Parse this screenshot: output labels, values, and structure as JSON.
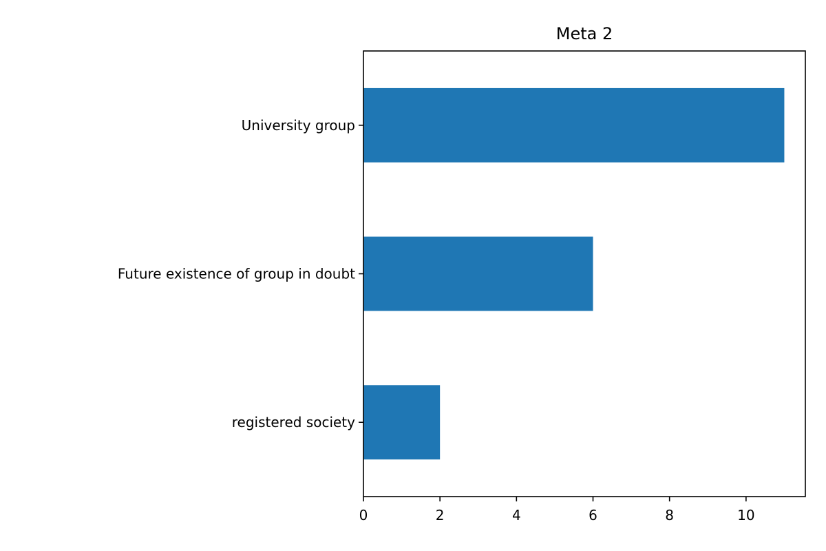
{
  "chart_data": {
    "type": "bar",
    "orientation": "horizontal",
    "title": "Meta 2",
    "xlabel": "",
    "ylabel": "",
    "categories": [
      "University group",
      "Future existence of group in doubt",
      "registered society"
    ],
    "values": [
      11,
      6,
      2
    ],
    "xlim": [
      0,
      11.55
    ],
    "xticks": [
      0,
      2,
      4,
      6,
      8,
      10
    ],
    "grid": false,
    "legend": false,
    "colors": {
      "bar": "#1f77b4"
    }
  }
}
